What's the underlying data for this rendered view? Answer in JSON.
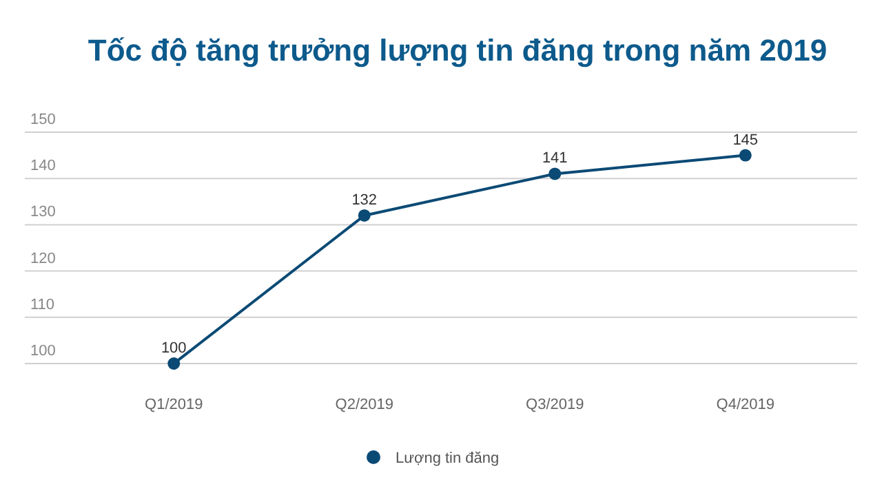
{
  "chart_data": {
    "type": "line",
    "title": "Tốc độ tăng trưởng lượng tin đăng trong năm 2019",
    "categories": [
      "Q1/2019",
      "Q2/2019",
      "Q3/2019",
      "Q4/2019"
    ],
    "series": [
      {
        "name": "Lượng tin đăng",
        "color": "#0b4a75",
        "values": [
          100,
          132,
          141,
          145
        ]
      }
    ],
    "ylim": [
      100,
      150
    ],
    "yticks": [
      100,
      110,
      120,
      130,
      140,
      150
    ],
    "grid": "y",
    "legend": "bottom",
    "marker": "circle",
    "line_style": "solid",
    "data_labels": true
  }
}
